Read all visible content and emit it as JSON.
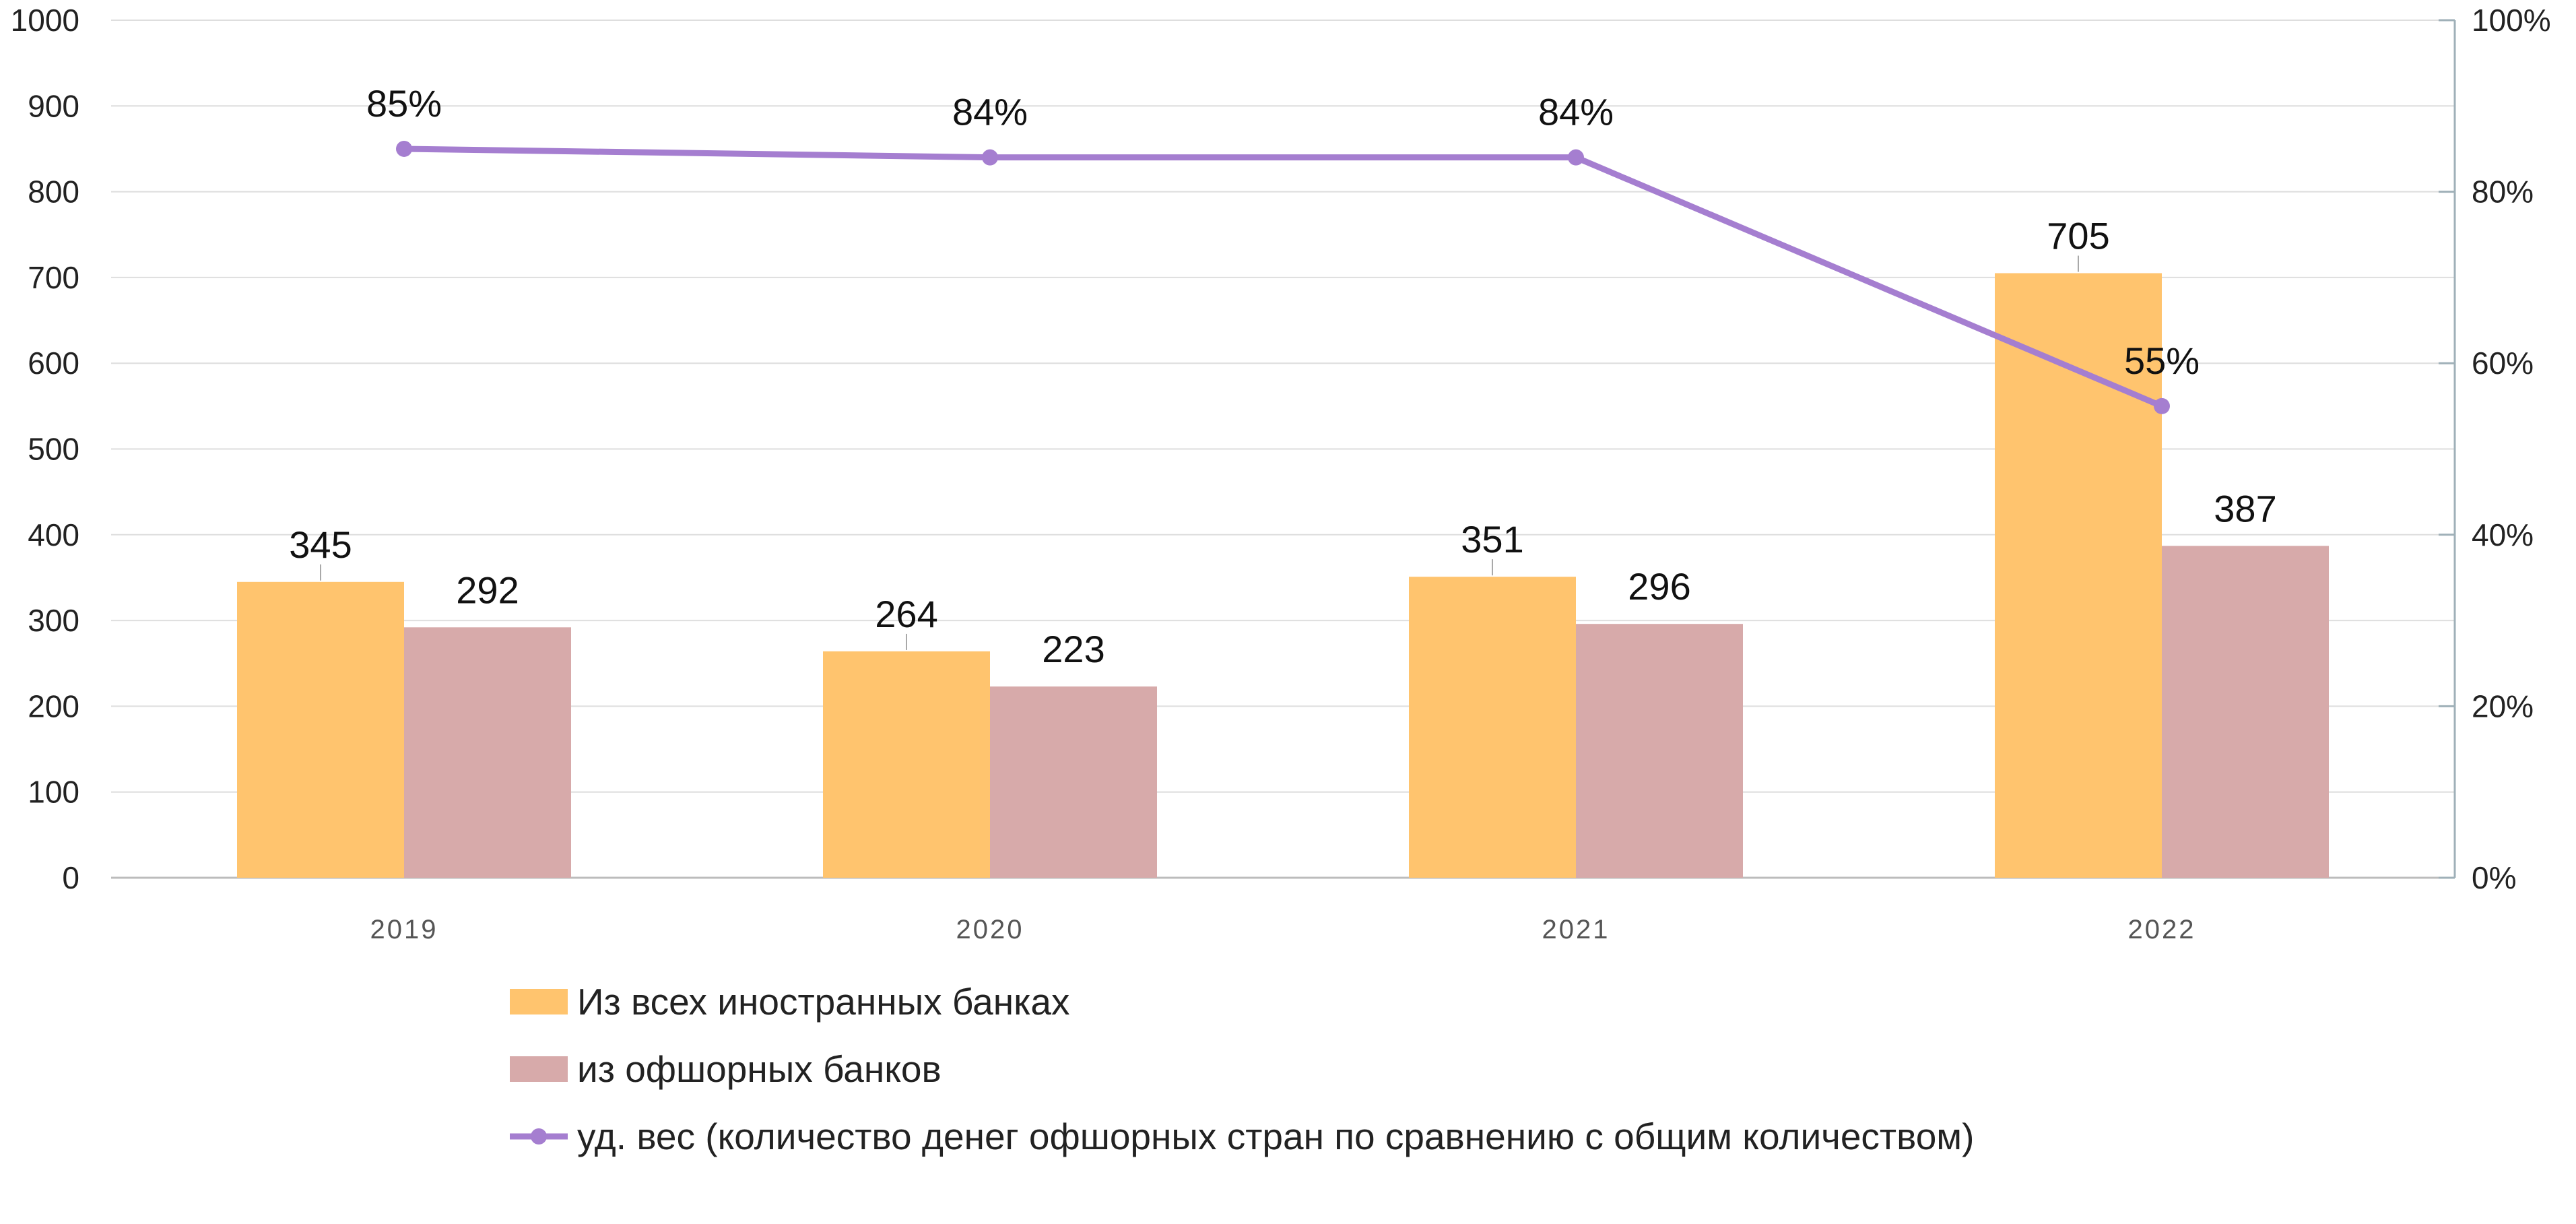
{
  "chart_data": {
    "type": "bar",
    "categories": [
      "2019",
      "2020",
      "2021",
      "2022"
    ],
    "series": [
      {
        "name": "Из всех иностранных банках",
        "type": "bar",
        "axis": "left",
        "values": [
          345,
          264,
          351,
          705
        ],
        "labels": [
          "345",
          "264",
          "351",
          "705"
        ],
        "color": "#FFC46E"
      },
      {
        "name": "из офшорных банков",
        "type": "bar",
        "axis": "left",
        "values": [
          292,
          223,
          296,
          387
        ],
        "labels": [
          "292",
          "223",
          "296",
          "387"
        ],
        "color": "#D7AAAA"
      },
      {
        "name": "уд. вес (количество денег офшорных стран по сравнению с общим количеством)",
        "type": "line",
        "axis": "right",
        "values": [
          85,
          84,
          84,
          55
        ],
        "labels": [
          "85%",
          "84%",
          "84%",
          "55%"
        ],
        "color": "#A57ED0"
      }
    ],
    "ylim": [
      0,
      1000
    ],
    "y_ticks": [
      "0",
      "100",
      "200",
      "300",
      "400",
      "500",
      "600",
      "700",
      "800",
      "900",
      "1000"
    ],
    "y2lim": [
      0,
      100
    ],
    "y2_ticks": [
      "0%",
      "20%",
      "40%",
      "60%",
      "80%",
      "100%"
    ],
    "grid": true,
    "legend_position": "bottom"
  }
}
